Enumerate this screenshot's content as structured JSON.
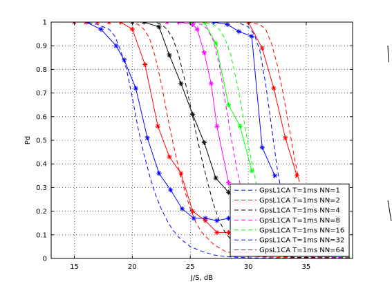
{
  "chart_data": {
    "type": "line",
    "xlabel": "J/S, dB",
    "ylabel": "Pd",
    "xlim": [
      13,
      39
    ],
    "ylim": [
      0,
      1
    ],
    "xticks": [
      15,
      20,
      25,
      30,
      35
    ],
    "yticks": [
      0,
      0.1,
      0.2,
      0.3,
      0.4,
      0.5,
      0.6,
      0.7,
      0.8,
      0.9,
      1
    ],
    "grid": true,
    "legend_position": "bottom-right",
    "line_styles": "marked solid = measured, dashed = theory",
    "series": [
      {
        "name": "GpsL1CA T=1ms NN=1",
        "color": "#0000ff",
        "marked": {
          "x": [
            15,
            16,
            17.3,
            18.6,
            19.3,
            20.3,
            21.3,
            22.3,
            23.3,
            24.3,
            25.3,
            26.3,
            27.3,
            28.3,
            29.3,
            30.3,
            31.3
          ],
          "y": [
            1,
            1,
            0.97,
            0.9,
            0.84,
            0.72,
            0.51,
            0.36,
            0.29,
            0.21,
            0.17,
            0.17,
            0.16,
            0.17,
            0.13,
            0.11,
            0.1
          ]
        },
        "dashed": {
          "x": [
            15,
            16,
            17,
            18,
            18.5,
            19,
            19.5,
            20,
            20.5,
            21,
            21.5,
            22,
            22.5,
            23,
            23.5,
            24,
            24.5,
            25,
            26,
            27,
            28,
            29,
            30,
            31,
            32,
            34,
            36,
            38.8
          ],
          "y": [
            1,
            1,
            0.99,
            0.97,
            0.94,
            0.88,
            0.8,
            0.68,
            0.55,
            0.44,
            0.35,
            0.27,
            0.21,
            0.16,
            0.12,
            0.09,
            0.07,
            0.05,
            0.03,
            0.015,
            0.008,
            0.005,
            0.003,
            0.002,
            0.002,
            0.001,
            0.001,
            0.001
          ]
        }
      },
      {
        "name": "GpsL1CA T=1ms NN=2",
        "color": "#ff0000",
        "marked": {
          "x": [
            15,
            16,
            17,
            18,
            19,
            20,
            21.1,
            22.2,
            23.2,
            24.2,
            25.2,
            26.3,
            27.3,
            28.3,
            29.3,
            30.3,
            31.3,
            32.3
          ],
          "y": [
            1,
            1,
            1,
            1,
            1,
            0.97,
            0.82,
            0.56,
            0.43,
            0.36,
            0.2,
            0.16,
            0.11,
            0.11,
            0.07,
            0.07,
            0.05,
            0.05
          ]
        },
        "dashed": {
          "x": [
            15,
            17,
            19,
            20,
            20.5,
            21,
            21.5,
            22,
            22.5,
            23,
            23.5,
            24,
            24.5,
            25,
            25.5,
            26,
            27,
            28,
            29,
            30,
            32,
            34,
            36,
            38.8
          ],
          "y": [
            1,
            1,
            1,
            1,
            0.99,
            0.97,
            0.93,
            0.85,
            0.74,
            0.61,
            0.49,
            0.38,
            0.29,
            0.21,
            0.15,
            0.11,
            0.06,
            0.03,
            0.02,
            0.01,
            0.005,
            0.003,
            0.002,
            0.002
          ]
        }
      },
      {
        "name": "GpsL1CA T=1ms NN=4",
        "color": "#000000",
        "marked": {
          "x": [
            20,
            21,
            22.3,
            23.2,
            24.2,
            25.2,
            26.2,
            27.2,
            28.3,
            29.3,
            30.3,
            31.3,
            32.3
          ],
          "y": [
            1,
            1,
            0.98,
            0.86,
            0.74,
            0.61,
            0.49,
            0.34,
            0.28,
            0.21,
            0.11,
            0.08,
            0.06
          ]
        },
        "dashed": {
          "x": [
            15,
            18,
            21,
            22,
            22.5,
            23,
            23.5,
            24,
            24.5,
            25,
            25.5,
            26,
            26.5,
            27,
            27.5,
            28,
            28.5,
            29,
            30,
            31,
            32,
            34,
            36,
            38.8
          ],
          "y": [
            1,
            1,
            1,
            1,
            0.99,
            0.97,
            0.93,
            0.86,
            0.76,
            0.65,
            0.53,
            0.42,
            0.32,
            0.23,
            0.16,
            0.11,
            0.08,
            0.06,
            0.03,
            0.02,
            0.01,
            0.005,
            0.004,
            0.004
          ]
        }
      },
      {
        "name": "GpsL1CA T=1ms NN=8",
        "color": "#ff00ff",
        "marked": {
          "x": [
            23,
            24,
            25.2,
            25.6,
            26.2,
            26.8,
            27.3,
            28.3,
            29.3
          ],
          "y": [
            1,
            1,
            0.99,
            0.97,
            0.87,
            0.74,
            0.56,
            0.32,
            0.26
          ]
        },
        "dashed": {
          "x": [
            15,
            20,
            25,
            26,
            26.5,
            27,
            27.5,
            28,
            28.5,
            29,
            29.5,
            30,
            30.5,
            31,
            32,
            33,
            34,
            36,
            38.8
          ],
          "y": [
            1,
            1,
            1,
            0.99,
            0.97,
            0.92,
            0.82,
            0.67,
            0.52,
            0.38,
            0.27,
            0.19,
            0.13,
            0.09,
            0.04,
            0.02,
            0.01,
            0.006,
            0.005
          ]
        }
      },
      {
        "name": "GpsL1CA T=1ms NN=16",
        "color": "#00ff00",
        "marked": {
          "x": [
            25,
            26.2,
            27.2,
            28.3,
            29.3,
            30.3
          ],
          "y": [
            1,
            1,
            0.91,
            0.65,
            0.56,
            0.37
          ]
        },
        "dashed": {
          "x": [
            15,
            22,
            26,
            27,
            27.5,
            28,
            28.5,
            29,
            29.5,
            30,
            30.5,
            31,
            31.5,
            32,
            33,
            34,
            36,
            38.8
          ],
          "y": [
            1,
            1,
            1,
            0.99,
            0.97,
            0.93,
            0.86,
            0.75,
            0.62,
            0.48,
            0.36,
            0.25,
            0.17,
            0.11,
            0.05,
            0.02,
            0.008,
            0.006
          ]
        }
      },
      {
        "name": "GpsL1CA T=1ms NN=32",
        "color": "#0000ff",
        "marked": {
          "x": [
            27,
            28.2,
            29.2,
            30.3,
            31.2,
            32.3
          ],
          "y": [
            1,
            0.99,
            0.96,
            0.94,
            0.47,
            0.35
          ]
        },
        "dashed": {
          "x": [
            15,
            25,
            29,
            30,
            30.5,
            31,
            31.5,
            32,
            32.5,
            33,
            33.5,
            34,
            35,
            36,
            38.8
          ],
          "y": [
            1,
            1,
            1,
            0.98,
            0.95,
            0.88,
            0.74,
            0.56,
            0.38,
            0.24,
            0.14,
            0.08,
            0.03,
            0.015,
            0.01
          ]
        }
      },
      {
        "name": "GpsL1CA T=1ms NN=64",
        "color": "#ff0000",
        "marked": {
          "x": [
            30,
            31.2,
            32.2,
            33.2,
            34.2
          ],
          "y": [
            1,
            0.89,
            0.72,
            0.51,
            0.35
          ]
        },
        "dashed": {
          "x": [
            15,
            26,
            30,
            31,
            31.5,
            32,
            32.5,
            33,
            33.5,
            34,
            34.5,
            35,
            36,
            37,
            38.8
          ],
          "y": [
            1,
            1,
            1,
            0.99,
            0.97,
            0.91,
            0.82,
            0.7,
            0.56,
            0.42,
            0.3,
            0.2,
            0.08,
            0.03,
            0.01
          ]
        }
      }
    ]
  }
}
